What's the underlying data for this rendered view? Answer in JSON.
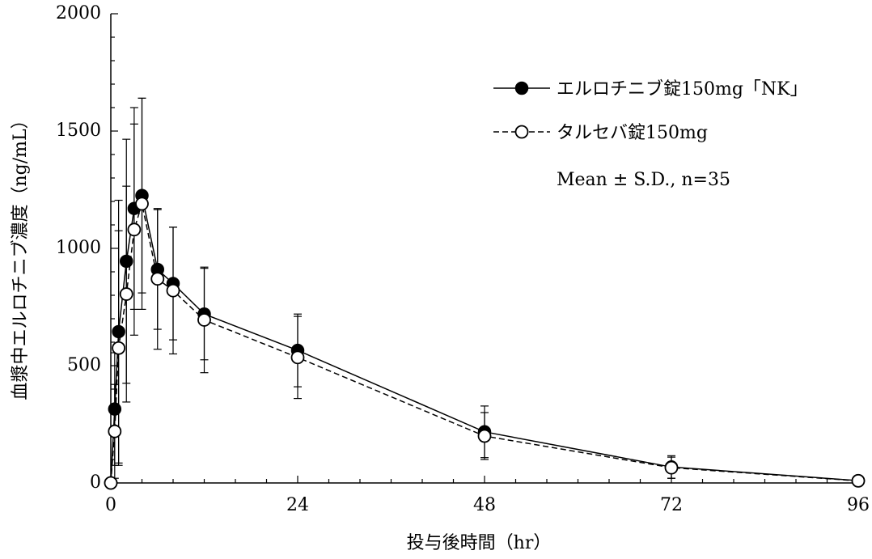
{
  "chart_data": {
    "type": "line",
    "xlabel": "投与後時間（hr）",
    "ylabel": "血漿中エルロチニブ濃度（ng/mL）",
    "xlim": [
      0,
      96
    ],
    "ylim": [
      0,
      2000
    ],
    "xticks": [
      0,
      24,
      48,
      72,
      96
    ],
    "yticks": [
      0,
      500,
      1000,
      1500,
      2000
    ],
    "x": [
      0,
      0.5,
      1,
      2,
      3,
      4,
      6,
      8,
      12,
      24,
      48,
      72,
      96
    ],
    "note": "Mean ± S.D., n=35",
    "grid": false,
    "legend_position": "top-right",
    "series": [
      {
        "name": "エルロチニブ錠150mg「NK」",
        "marker": "filled-circle",
        "line": "solid",
        "color": "#000000",
        "values": [
          0,
          315,
          645,
          945,
          1170,
          1225,
          910,
          850,
          720,
          565,
          218,
          68,
          10
        ],
        "sd": [
          0,
          240,
          560,
          520,
          430,
          415,
          255,
          240,
          195,
          155,
          110,
          48,
          10
        ]
      },
      {
        "name": "タルセバ錠150mg",
        "marker": "open-circle",
        "line": "dashed",
        "color": "#000000",
        "values": [
          0,
          220,
          575,
          805,
          1080,
          1190,
          870,
          820,
          695,
          535,
          200,
          65,
          9
        ],
        "sd": [
          0,
          200,
          500,
          460,
          450,
          450,
          300,
          270,
          225,
          175,
          100,
          45,
          9
        ]
      }
    ]
  }
}
